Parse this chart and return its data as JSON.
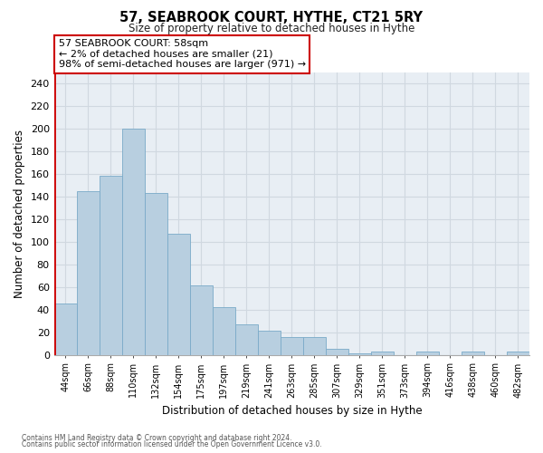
{
  "title": "57, SEABROOK COURT, HYTHE, CT21 5RY",
  "subtitle": "Size of property relative to detached houses in Hythe",
  "xlabel": "Distribution of detached houses by size in Hythe",
  "ylabel": "Number of detached properties",
  "bin_labels": [
    "44sqm",
    "66sqm",
    "88sqm",
    "110sqm",
    "132sqm",
    "154sqm",
    "175sqm",
    "197sqm",
    "219sqm",
    "241sqm",
    "263sqm",
    "285sqm",
    "307sqm",
    "329sqm",
    "351sqm",
    "373sqm",
    "394sqm",
    "416sqm",
    "438sqm",
    "460sqm",
    "482sqm"
  ],
  "bar_heights": [
    45,
    145,
    158,
    200,
    143,
    107,
    61,
    42,
    27,
    21,
    16,
    16,
    5,
    1,
    3,
    0,
    3,
    0,
    3,
    0,
    3
  ],
  "bar_color": "#b8cfe0",
  "highlight_bar_edge_color": "#cc0000",
  "normal_bar_edge_color": "#7aaac8",
  "ylim": [
    0,
    250
  ],
  "yticks": [
    0,
    20,
    40,
    60,
    80,
    100,
    120,
    140,
    160,
    180,
    200,
    220,
    240
  ],
  "annotation_title": "57 SEABROOK COURT: 58sqm",
  "annotation_line1": "← 2% of detached houses are smaller (21)",
  "annotation_line2": "98% of semi-detached houses are larger (971) →",
  "footer_line1": "Contains HM Land Registry data © Crown copyright and database right 2024.",
  "footer_line2": "Contains public sector information licensed under the Open Government Licence v3.0.",
  "grid_color": "#d0d8e0",
  "background_color": "#e8eef4"
}
